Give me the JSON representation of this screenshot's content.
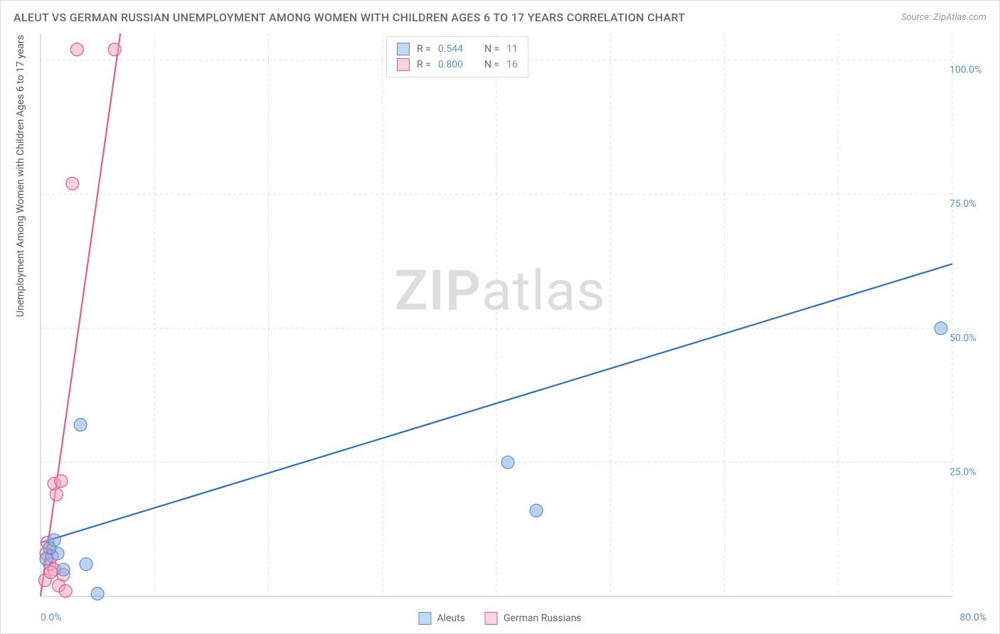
{
  "title": "ALEUT VS GERMAN RUSSIAN UNEMPLOYMENT AMONG WOMEN WITH CHILDREN AGES 6 TO 17 YEARS CORRELATION CHART",
  "source": "Source: ZipAtlas.com",
  "ylabel": "Unemployment Among Women with Children Ages 6 to 17 years",
  "watermark_a": "ZIP",
  "watermark_b": "atlas",
  "chart": {
    "type": "scatter",
    "xlim": [
      0,
      80
    ],
    "ylim": [
      0,
      105
    ],
    "x_tick_labels": {
      "0": "0.0%",
      "80": "80.0%"
    },
    "y_tick_labels": [
      "25.0%",
      "50.0%",
      "75.0%",
      "100.0%"
    ],
    "y_tick_values": [
      25,
      50,
      75,
      100
    ],
    "x_gridlines": [
      10,
      20,
      30,
      40,
      50,
      60,
      70,
      80
    ],
    "background_color": "#ffffff",
    "grid_color": "#e0e0e0",
    "axis_color": "#cccccc",
    "label_color": "#5a8fd6",
    "dot_radius": 9,
    "series": {
      "aleuts": {
        "label": "Aleuts",
        "color_fill": "rgba(120,170,220,0.5)",
        "color_stroke": "#5a8fd6",
        "line_color": "#2c6fba",
        "R": "0.544",
        "N": "11",
        "trend": {
          "x1": 0,
          "y1": 10,
          "x2": 80,
          "y2": 62
        },
        "points": [
          {
            "x": 79,
            "y": 50
          },
          {
            "x": 43.5,
            "y": 16
          },
          {
            "x": 41,
            "y": 25
          },
          {
            "x": 3.5,
            "y": 32
          },
          {
            "x": 5,
            "y": 0.5
          },
          {
            "x": 2,
            "y": 5
          },
          {
            "x": 1.5,
            "y": 8
          },
          {
            "x": 0.8,
            "y": 9
          },
          {
            "x": 1.2,
            "y": 10.5
          },
          {
            "x": 0.5,
            "y": 7
          },
          {
            "x": 4,
            "y": 6
          }
        ]
      },
      "german_russians": {
        "label": "German Russians",
        "color_fill": "rgba(240,160,190,0.5)",
        "color_stroke": "#e85a8a",
        "line_color": "#e85a8a",
        "R": "0.800",
        "N": "16",
        "trend": {
          "x1": 0,
          "y1": 0,
          "x2": 7,
          "y2": 105
        },
        "points": [
          {
            "x": 3.2,
            "y": 102
          },
          {
            "x": 6.5,
            "y": 102
          },
          {
            "x": 2.8,
            "y": 77
          },
          {
            "x": 1.2,
            "y": 21
          },
          {
            "x": 1.8,
            "y": 21.5
          },
          {
            "x": 1.4,
            "y": 19
          },
          {
            "x": 0.5,
            "y": 8
          },
          {
            "x": 0.8,
            "y": 6
          },
          {
            "x": 1.0,
            "y": 7.5
          },
          {
            "x": 1.2,
            "y": 5
          },
          {
            "x": 2.0,
            "y": 4
          },
          {
            "x": 0.4,
            "y": 3
          },
          {
            "x": 1.6,
            "y": 2
          },
          {
            "x": 2.2,
            "y": 1
          },
          {
            "x": 0.6,
            "y": 10
          },
          {
            "x": 0.9,
            "y": 4.5
          }
        ]
      }
    }
  },
  "stats_labels": {
    "R": "R =",
    "N": "N ="
  }
}
